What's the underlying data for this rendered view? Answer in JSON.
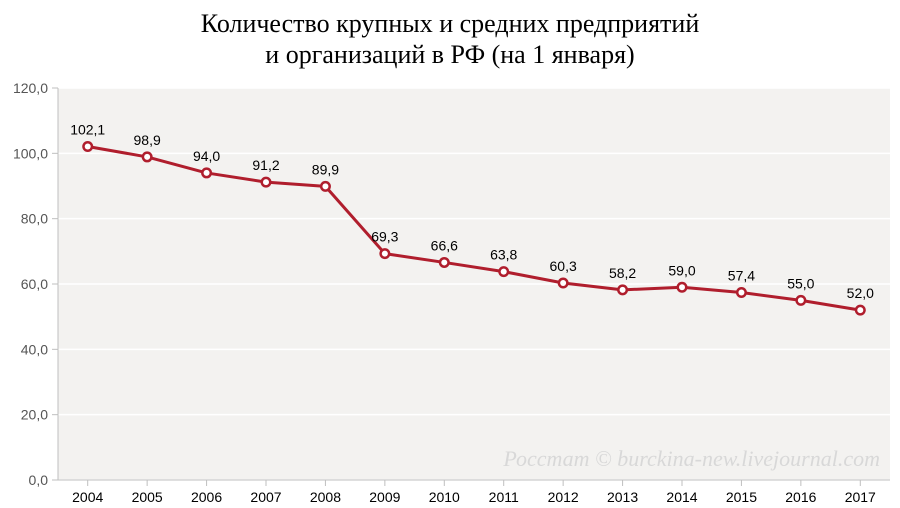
{
  "title_line1": "Количество крупных и средних предприятий",
  "title_line2": "и организаций в РФ (на 1 января)",
  "chart": {
    "type": "line",
    "background_color": "#f3f2f0",
    "grid_color": "#ffffff",
    "axis_color": "#bfbfbf",
    "line_color": "#b01e2d",
    "line_width": 3,
    "marker_outer_color": "#b01e2d",
    "marker_inner_color": "#ffffff",
    "marker_radius": 5.5,
    "marker_inner_radius": 3,
    "ylim": [
      0,
      120
    ],
    "ytick_step": 20,
    "ytick_labels": [
      "0,0",
      "20,0",
      "40,0",
      "60,0",
      "80,0",
      "100,0",
      "120,0"
    ],
    "x_categories": [
      "2004",
      "2005",
      "2006",
      "2007",
      "2008",
      "2009",
      "2010",
      "2011",
      "2012",
      "2013",
      "2014",
      "2015",
      "2016",
      "2017"
    ],
    "values": [
      102.1,
      98.9,
      94.0,
      91.2,
      89.9,
      69.3,
      66.6,
      63.8,
      60.3,
      58.2,
      59.0,
      57.4,
      55.0,
      52.0
    ],
    "value_labels": [
      "102,1",
      "98,9",
      "94,0",
      "91,2",
      "89,9",
      "69,3",
      "66,6",
      "63,8",
      "60,3",
      "58,2",
      "59,0",
      "57,4",
      "55,0",
      "52,0"
    ],
    "tick_fontsize": 14,
    "label_fontsize": 14
  },
  "watermark": "Росстат © burckina-new.livejournal.com"
}
